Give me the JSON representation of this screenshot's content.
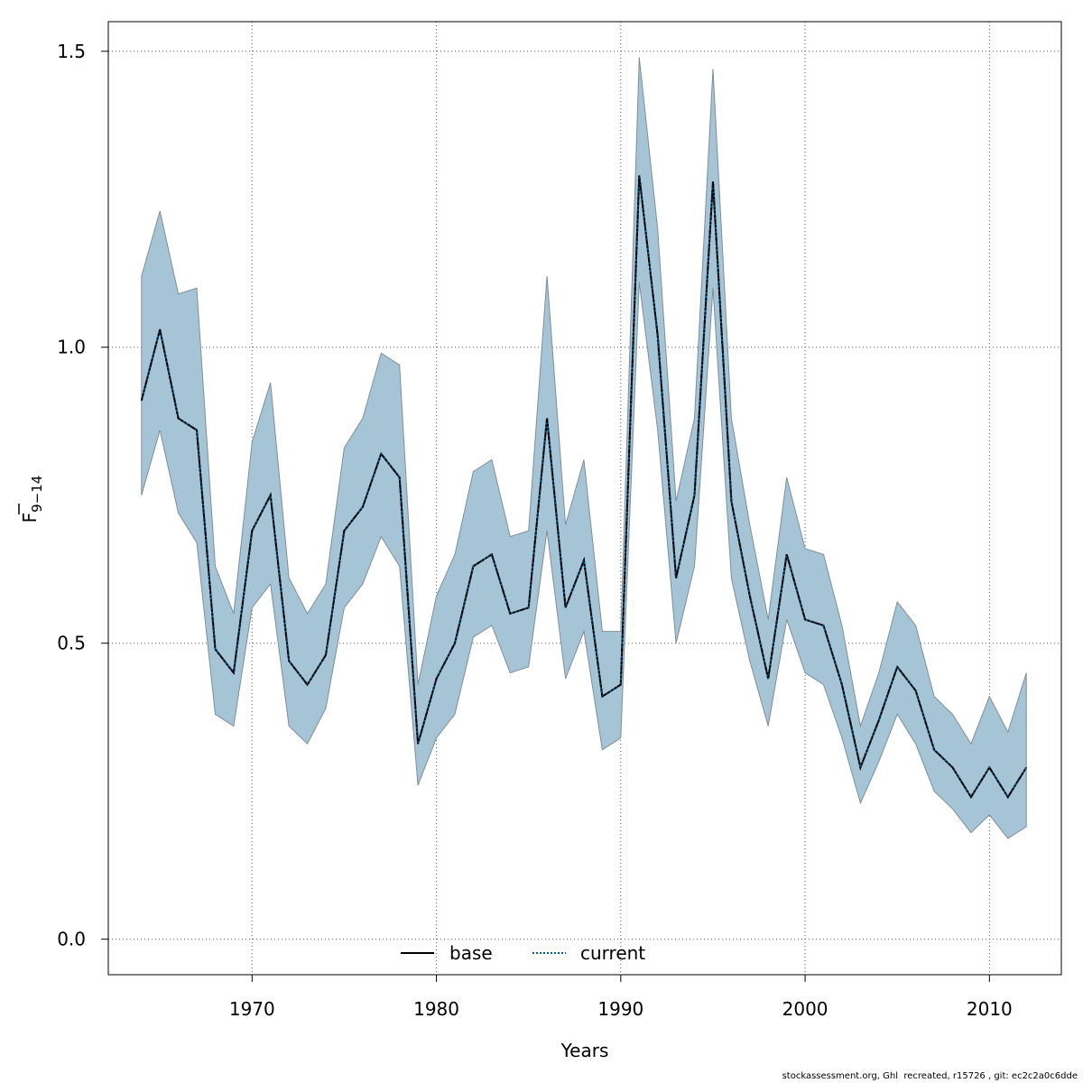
{
  "chart_data": {
    "type": "line",
    "x": [
      1964,
      1965,
      1966,
      1967,
      1968,
      1969,
      1970,
      1971,
      1972,
      1973,
      1974,
      1975,
      1976,
      1977,
      1978,
      1979,
      1980,
      1981,
      1982,
      1983,
      1984,
      1985,
      1986,
      1987,
      1988,
      1989,
      1990,
      1991,
      1992,
      1993,
      1994,
      1995,
      1996,
      1997,
      1998,
      1999,
      2000,
      2001,
      2002,
      2003,
      2004,
      2005,
      2006,
      2007,
      2008,
      2009,
      2010,
      2011,
      2012
    ],
    "series": [
      {
        "name": "base",
        "values": [
          0.91,
          1.03,
          0.88,
          0.86,
          0.49,
          0.45,
          0.69,
          0.75,
          0.47,
          0.43,
          0.48,
          0.69,
          0.73,
          0.82,
          0.78,
          0.33,
          0.44,
          0.5,
          0.63,
          0.65,
          0.55,
          0.56,
          0.88,
          0.56,
          0.64,
          0.41,
          0.43,
          1.29,
          1.02,
          0.61,
          0.75,
          1.28,
          0.74,
          0.58,
          0.44,
          0.65,
          0.54,
          0.53,
          0.43,
          0.29,
          0.37,
          0.46,
          0.42,
          0.32,
          0.29,
          0.24,
          0.29,
          0.24,
          0.29
        ]
      },
      {
        "name": "current",
        "values": [
          0.91,
          1.03,
          0.88,
          0.86,
          0.49,
          0.45,
          0.69,
          0.75,
          0.47,
          0.43,
          0.48,
          0.69,
          0.73,
          0.82,
          0.78,
          0.33,
          0.44,
          0.5,
          0.63,
          0.65,
          0.55,
          0.56,
          0.88,
          0.56,
          0.64,
          0.41,
          0.43,
          1.29,
          1.02,
          0.61,
          0.75,
          1.28,
          0.74,
          0.58,
          0.44,
          0.65,
          0.54,
          0.53,
          0.43,
          0.29,
          0.37,
          0.46,
          0.42,
          0.32,
          0.29,
          0.24,
          0.29,
          0.24,
          0.29
        ]
      }
    ],
    "band_upper": [
      1.12,
      1.23,
      1.09,
      1.1,
      0.63,
      0.55,
      0.84,
      0.94,
      0.61,
      0.55,
      0.6,
      0.83,
      0.88,
      0.99,
      0.97,
      0.43,
      0.58,
      0.65,
      0.79,
      0.81,
      0.68,
      0.69,
      1.12,
      0.7,
      0.81,
      0.52,
      0.52,
      1.49,
      1.2,
      0.74,
      0.88,
      1.47,
      0.88,
      0.7,
      0.54,
      0.78,
      0.66,
      0.65,
      0.53,
      0.36,
      0.45,
      0.57,
      0.53,
      0.41,
      0.38,
      0.33,
      0.41,
      0.35,
      0.45
    ],
    "band_lower": [
      0.75,
      0.86,
      0.72,
      0.67,
      0.38,
      0.36,
      0.56,
      0.6,
      0.36,
      0.33,
      0.39,
      0.56,
      0.6,
      0.68,
      0.63,
      0.26,
      0.34,
      0.38,
      0.51,
      0.53,
      0.45,
      0.46,
      0.69,
      0.44,
      0.52,
      0.32,
      0.34,
      1.11,
      0.86,
      0.5,
      0.63,
      1.1,
      0.61,
      0.47,
      0.36,
      0.54,
      0.45,
      0.43,
      0.34,
      0.23,
      0.3,
      0.38,
      0.33,
      0.25,
      0.22,
      0.18,
      0.21,
      0.17,
      0.19
    ],
    "xlabel": "Years",
    "ylabel_main": "F",
    "ylabel_sub": "9−14",
    "xlim": [
      1962.2,
      2013.9
    ],
    "ylim": [
      -0.06,
      1.55
    ],
    "x_ticks": [
      1970,
      1980,
      1990,
      2000,
      2010
    ],
    "x_tick_labels": [
      "1970",
      "1980",
      "1990",
      "2000",
      "2010"
    ],
    "y_ticks": [
      0.0,
      0.5,
      1.0,
      1.5
    ],
    "y_tick_labels": [
      "0.0",
      "0.5",
      "1.0",
      "1.5"
    ],
    "grid": true,
    "legend_position": "bottom-center",
    "colors": {
      "band_fill": "#a5c4d6",
      "band_stroke": "#808e99",
      "base_line": "#000000",
      "current_line": "#0b5a8c",
      "grid": "#555555"
    }
  },
  "footer": {
    "text": "stockassessment.org, Ghl  recreated, r15726 , git: ec2c2a0c6dde"
  }
}
